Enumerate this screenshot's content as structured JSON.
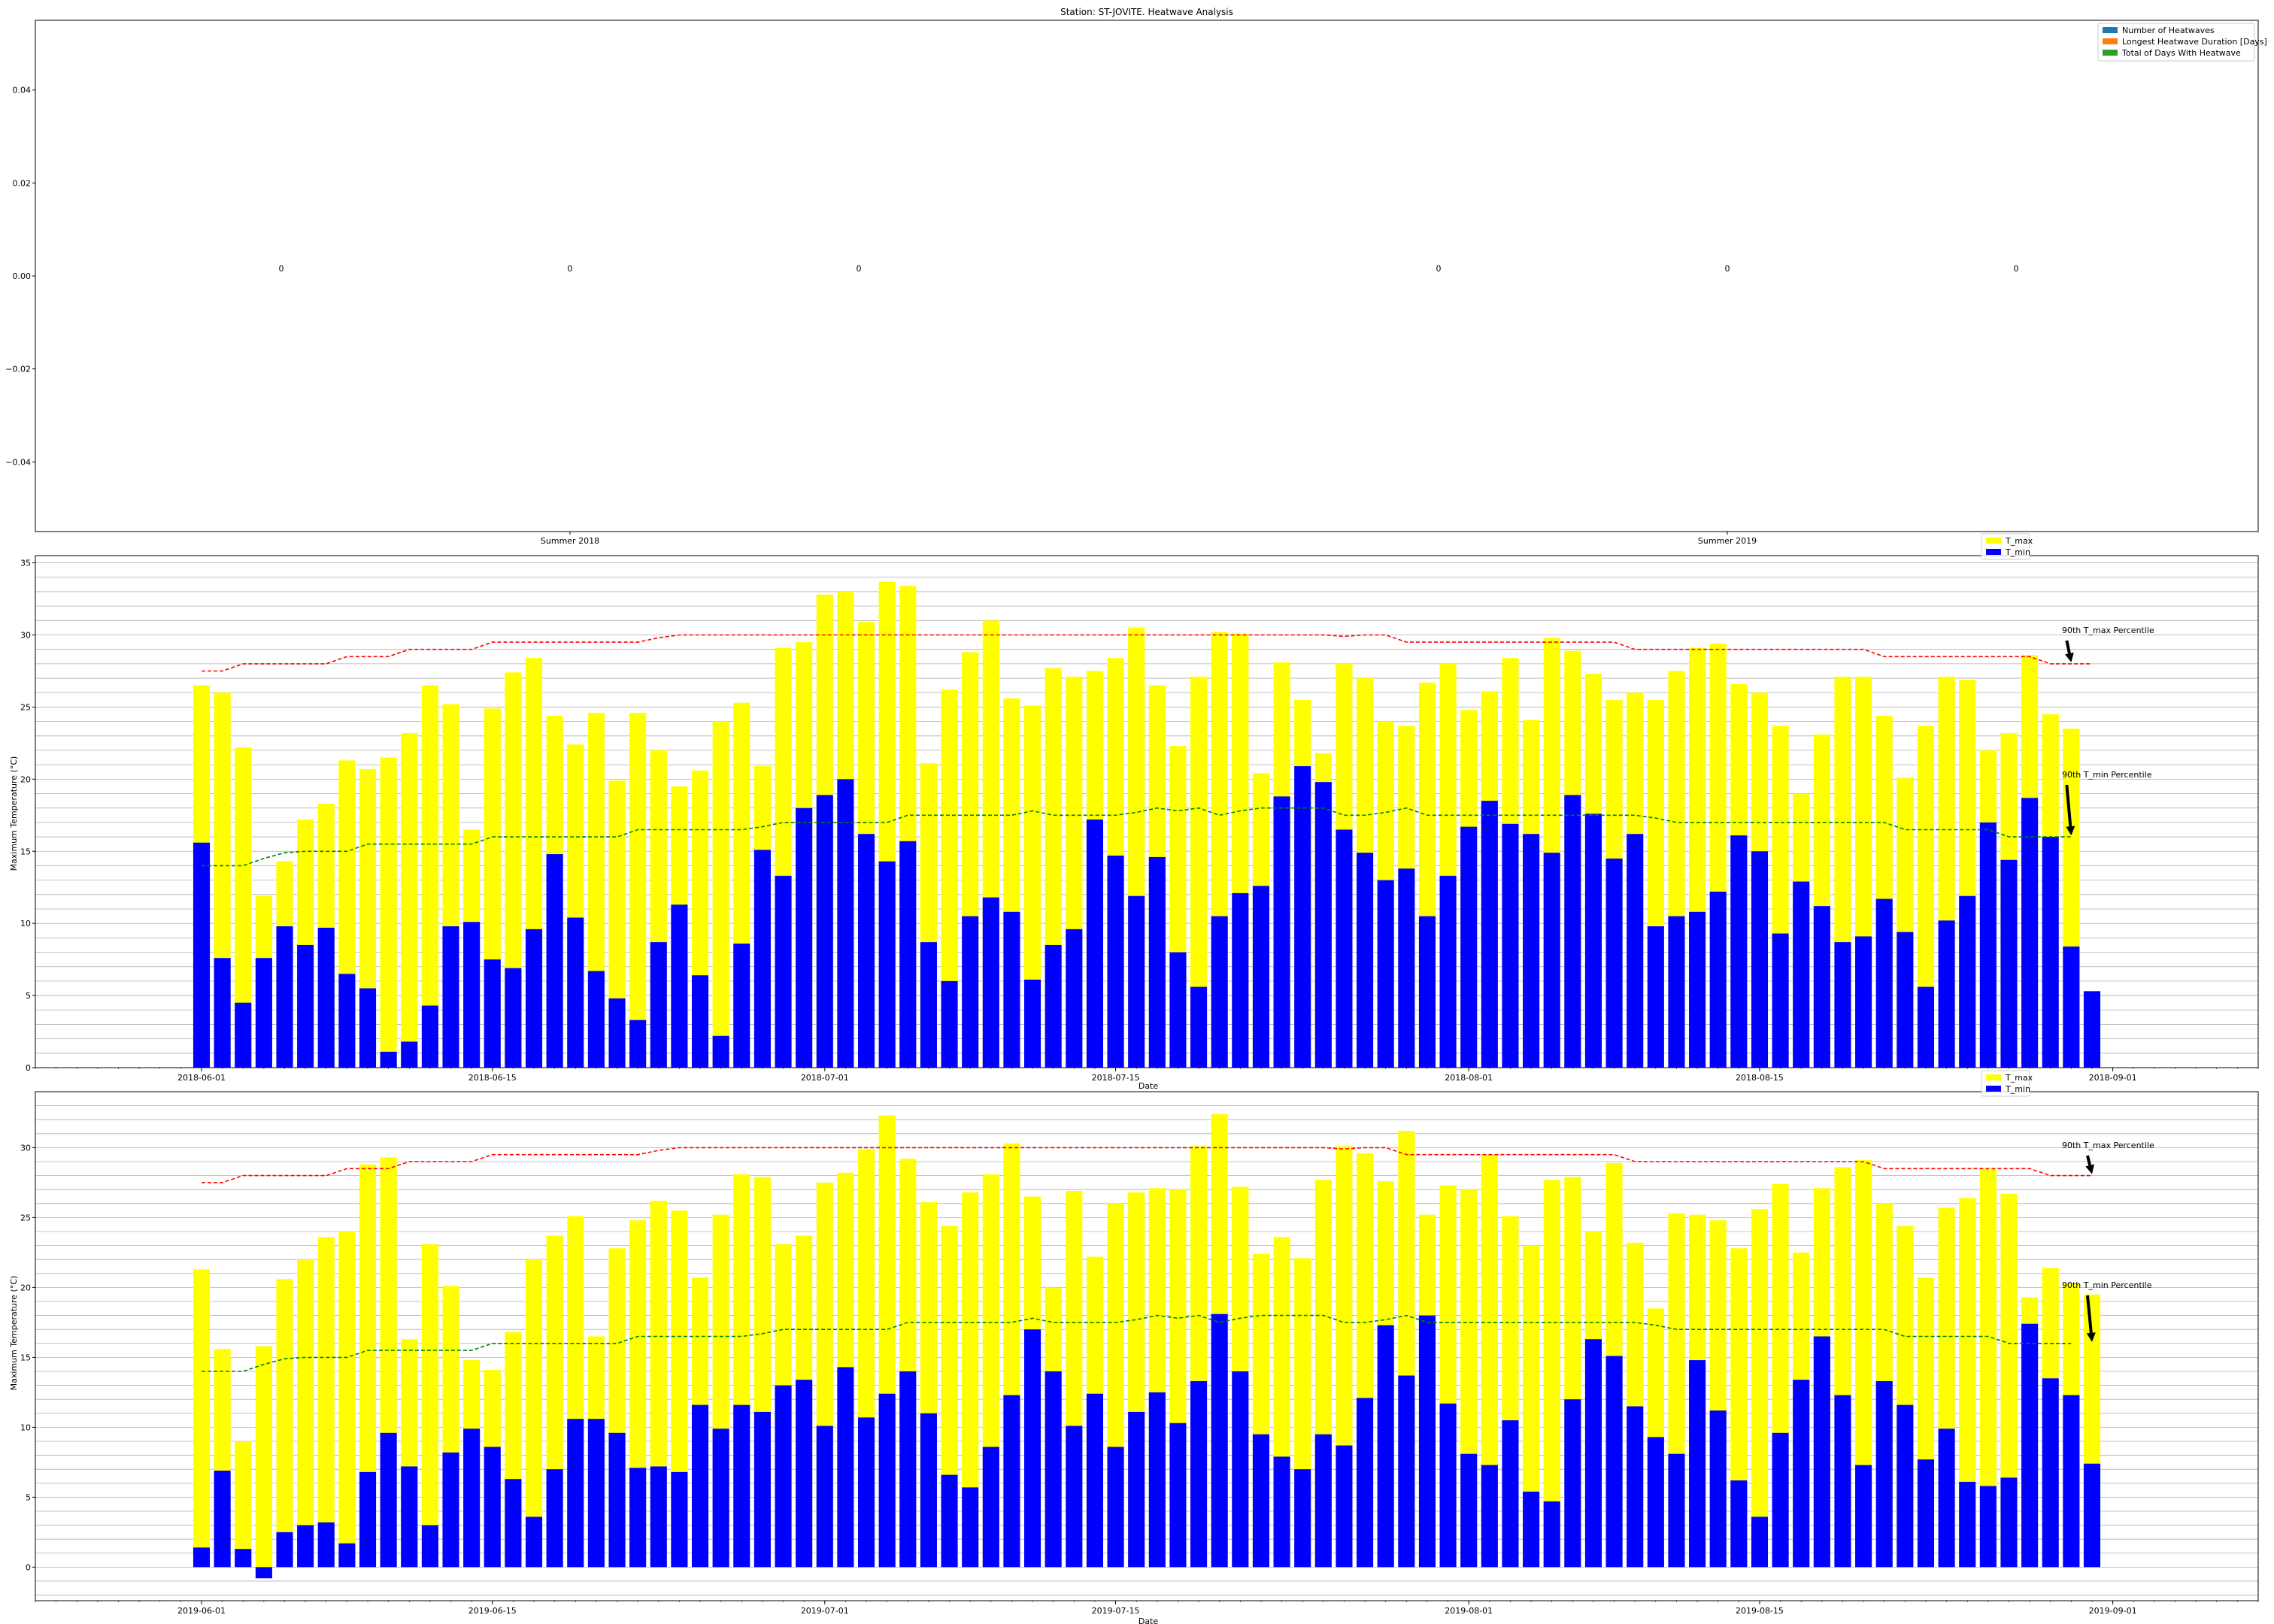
{
  "chart_data": [
    {
      "type": "bar",
      "title": "Station: ST-JOVITE. Heatwave Analysis",
      "xlabel": "",
      "ylabel": "",
      "categories": [
        "Summer 2018",
        "Summer 2019"
      ],
      "series": [
        {
          "name": "Number of Heatwaves",
          "values": [
            0,
            0
          ],
          "color": "#1f77b4"
        },
        {
          "name": "Longest Heatwave Duration [Days]",
          "values": [
            0,
            0
          ],
          "color": "#ff7f0e"
        },
        {
          "name": "Total of Days With Heatwave",
          "values": [
            0,
            0
          ],
          "color": "#2ca02c"
        }
      ],
      "bar_value_labels": [
        "0",
        "0",
        "0",
        "0",
        "0",
        "0"
      ],
      "ylim": [
        -0.055,
        0.055
      ],
      "yticks": [
        0.04,
        0.02,
        0.0,
        -0.02,
        -0.04
      ],
      "ytick_labels": [
        "0.04",
        "0.02",
        "0.00",
        "−0.02",
        "−0.04"
      ],
      "legend": "top-right"
    },
    {
      "type": "bar",
      "title": "",
      "xlabel": "Date",
      "ylabel": "Maximum Temperature (°C)",
      "x_start": "2018-06-01",
      "x_end": "2018-08-31",
      "xlim": [
        "2018-05-24",
        "2018-09-08"
      ],
      "xticks": [
        "2018-06-01",
        "2018-06-15",
        "2018-07-01",
        "2018-07-15",
        "2018-08-01",
        "2018-08-15",
        "2018-09-01"
      ],
      "ylim": [
        0,
        35.5
      ],
      "yticks": [
        0,
        5,
        10,
        15,
        20,
        25,
        30,
        35
      ],
      "ytick_labels": [
        "0",
        "5",
        "10",
        "15",
        "20",
        "25",
        "30",
        "35"
      ],
      "grid": "horizontal",
      "legend": "top-right",
      "series": [
        {
          "name": "T_max",
          "color": "#ffff00",
          "values": [
            26.5,
            26,
            22.2,
            11.9,
            14.3,
            17.2,
            18.3,
            21.3,
            20.7,
            21.5,
            23.2,
            26.5,
            25.2,
            16.5,
            24.9,
            27.4,
            28.4,
            24.4,
            22.4,
            24.6,
            19.9,
            24.6,
            22,
            19.5,
            20.6,
            24,
            25.3,
            20.9,
            29.1,
            29.5,
            32.8,
            33,
            30.9,
            33.7,
            33.4,
            21.1,
            26.2,
            28.8,
            31,
            25.6,
            25.1,
            27.7,
            27.1,
            27.5,
            28.4,
            30.5,
            26.5,
            22.3,
            27.1,
            30.2,
            30.1,
            20.4,
            28.1,
            25.5,
            21.8,
            28,
            27,
            24,
            23.7,
            26.7,
            28,
            24.8,
            26.1,
            28.4,
            24.1,
            29.8,
            28.9,
            27.3,
            25.5,
            26,
            25.5,
            27.5,
            29.1,
            29.4,
            26.6,
            26,
            23.7,
            19,
            23.1,
            27.1,
            27.1,
            24.4,
            20.1,
            23.7,
            27.1,
            26.9,
            22,
            23.2,
            28.6,
            24.5,
            23.5
          ]
        },
        {
          "name": "T_min",
          "color": "#0000ff",
          "values": [
            15.6,
            7.6,
            4.5,
            7.6,
            9.8,
            8.5,
            9.7,
            6.5,
            5.5,
            1.1,
            1.8,
            4.3,
            9.8,
            10.1,
            7.5,
            6.9,
            9.6,
            14.8,
            10.4,
            6.7,
            4.8,
            3.3,
            8.7,
            11.3,
            6.4,
            2.2,
            8.6,
            15.1,
            13.3,
            18,
            18.9,
            20,
            16.2,
            14.3,
            15.7,
            8.7,
            6,
            10.5,
            11.8,
            10.8,
            6.1,
            8.5,
            9.6,
            17.2,
            14.7,
            11.9,
            14.6,
            8,
            5.6,
            10.5,
            12.1,
            12.6,
            18.8,
            20.9,
            19.8,
            16.5,
            14.9,
            13,
            13.8,
            10.5,
            13.3,
            16.7,
            18.5,
            16.9,
            16.2,
            14.9,
            18.9,
            17.6,
            14.5,
            16.2,
            9.8,
            10.5,
            10.8,
            12.2,
            16.1,
            15,
            9.3,
            12.9,
            11.2,
            8.7,
            9.1,
            11.7,
            9.4,
            5.6,
            10.2,
            11.9,
            17,
            14.4,
            18.7,
            16,
            8.4,
            5.3
          ]
        }
      ],
      "thresholds": [
        {
          "name": "90th T_max Percentile",
          "color": "#ff0000",
          "values": [
            27.5,
            27.5,
            28,
            28,
            28,
            28,
            28,
            28.5,
            28.5,
            28.5,
            29,
            29,
            29,
            29,
            29.5,
            29.5,
            29.5,
            29.5,
            29.5,
            29.5,
            29.5,
            29.5,
            29.8,
            30,
            30,
            30,
            30,
            30,
            30,
            30,
            30,
            30,
            30,
            30,
            30,
            30,
            30,
            30,
            30,
            30,
            30,
            30,
            30,
            30,
            30,
            30,
            30,
            30,
            30,
            30,
            30,
            30,
            30,
            30,
            30,
            29.9,
            30,
            30,
            29.5,
            29.5,
            29.5,
            29.5,
            29.5,
            29.5,
            29.5,
            29.5,
            29.5,
            29.5,
            29.5,
            29,
            29,
            29,
            29,
            29,
            29,
            29,
            29,
            29,
            29,
            29,
            29,
            28.5,
            28.5,
            28.5,
            28.5,
            28.5,
            28.5,
            28.5,
            28.5,
            28,
            28,
            28
          ]
        },
        {
          "name": "90th T_min Percentile",
          "color": "#008000",
          "values": [
            14,
            14,
            14,
            14.5,
            14.9,
            15,
            15,
            15,
            15.5,
            15.5,
            15.5,
            15.5,
            15.5,
            15.5,
            16,
            16,
            16,
            16,
            16,
            16,
            16,
            16.5,
            16.5,
            16.5,
            16.5,
            16.5,
            16.5,
            16.7,
            17,
            17,
            17,
            17,
            17,
            17,
            17.5,
            17.5,
            17.5,
            17.5,
            17.5,
            17.5,
            17.8,
            17.5,
            17.5,
            17.5,
            17.5,
            17.7,
            18,
            17.8,
            18,
            17.5,
            17.8,
            18,
            18,
            18,
            18,
            17.5,
            17.5,
            17.7,
            18,
            17.5,
            17.5,
            17.5,
            17.5,
            17.5,
            17.5,
            17.5,
            17.5,
            17.5,
            17.5,
            17.5,
            17.3,
            17,
            17,
            17,
            17,
            17,
            17,
            17,
            17,
            17,
            17,
            17,
            16.5,
            16.5,
            16.5,
            16.5,
            16.5,
            16,
            16,
            16,
            16
          ]
        }
      ],
      "annotations": [
        {
          "text": "90th T_max Percentile",
          "target_y": 28
        },
        {
          "text": "90th T_min Percentile",
          "target_y": 16
        }
      ]
    },
    {
      "type": "bar",
      "title": "",
      "xlabel": "Date",
      "ylabel": "Maximum Temperature (°C)",
      "x_start": "2019-06-01",
      "x_end": "2019-08-31",
      "xlim": [
        "2019-05-24",
        "2019-09-08"
      ],
      "xticks": [
        "2019-06-01",
        "2019-06-15",
        "2019-07-01",
        "2019-07-15",
        "2019-08-01",
        "2019-08-15",
        "2019-09-01"
      ],
      "ylim": [
        -2.4,
        34
      ],
      "yticks": [
        0,
        5,
        10,
        15,
        20,
        25,
        30
      ],
      "ytick_labels": [
        "0",
        "5",
        "10",
        "15",
        "20",
        "25",
        "30"
      ],
      "grid": "horizontal",
      "legend": "top-right",
      "series": [
        {
          "name": "T_max",
          "color": "#ffff00",
          "values": [
            21.3,
            15.6,
            9,
            15.8,
            20.6,
            22,
            23.6,
            24,
            28.8,
            29.3,
            16.3,
            23.1,
            20.1,
            14.8,
            14.1,
            16.8,
            22,
            23.7,
            25.1,
            16.5,
            22.8,
            24.8,
            26.2,
            25.5,
            20.7,
            25.2,
            28.1,
            27.9,
            23.1,
            23.7,
            27.5,
            28.2,
            29.9,
            32.3,
            29.2,
            26.1,
            24.4,
            26.8,
            28.1,
            30.3,
            26.5,
            20,
            26.9,
            22.2,
            26,
            26.8,
            27.1,
            27,
            30.1,
            32.4,
            27.2,
            22.4,
            23.6,
            22.1,
            27.7,
            30.1,
            29.6,
            27.6,
            31.2,
            25.2,
            27.3,
            27,
            29.5,
            25.1,
            23,
            27.7,
            27.9,
            24,
            28.9,
            23.2,
            18.5,
            25.3,
            25.2,
            24.8,
            22.8,
            25.6,
            27.4,
            22.5,
            27.1,
            28.6,
            29.1,
            26,
            24.4,
            20.7,
            25.7,
            26.4,
            28.5,
            26.7,
            19.3,
            21.4,
            20.3,
            19.5
          ]
        },
        {
          "name": "T_min",
          "color": "#0000ff",
          "values": [
            1.4,
            6.9,
            1.3,
            -0.8,
            2.5,
            3,
            3.2,
            1.7,
            6.8,
            9.6,
            7.2,
            3,
            8.2,
            9.9,
            8.6,
            6.3,
            3.6,
            7,
            10.6,
            10.6,
            9.6,
            7.1,
            7.2,
            6.8,
            11.6,
            9.9,
            11.6,
            11.1,
            13,
            13.4,
            10.1,
            14.3,
            10.7,
            12.4,
            14,
            11,
            6.6,
            5.7,
            8.6,
            12.3,
            17,
            14,
            10.1,
            12.4,
            8.6,
            11.1,
            12.5,
            10.3,
            13.3,
            18.1,
            14,
            9.5,
            7.9,
            7,
            9.5,
            8.7,
            12.1,
            17.3,
            13.7,
            18,
            11.7,
            8.1,
            7.3,
            10.5,
            5.4,
            4.7,
            12,
            16.3,
            15.1,
            11.5,
            9.3,
            8.1,
            14.8,
            11.2,
            6.2,
            3.6,
            9.6,
            13.4,
            16.5,
            12.3,
            7.3,
            13.3,
            11.6,
            7.7,
            9.9,
            6.1,
            5.8,
            6.4,
            17.4,
            13.5,
            12.3,
            7.4
          ]
        }
      ],
      "thresholds": [
        {
          "name": "90th T_max Percentile",
          "color": "#ff0000",
          "values": [
            27.5,
            27.5,
            28,
            28,
            28,
            28,
            28,
            28.5,
            28.5,
            28.5,
            29,
            29,
            29,
            29,
            29.5,
            29.5,
            29.5,
            29.5,
            29.5,
            29.5,
            29.5,
            29.5,
            29.8,
            30,
            30,
            30,
            30,
            30,
            30,
            30,
            30,
            30,
            30,
            30,
            30,
            30,
            30,
            30,
            30,
            30,
            30,
            30,
            30,
            30,
            30,
            30,
            30,
            30,
            30,
            30,
            30,
            30,
            30,
            30,
            30,
            29.9,
            30,
            30,
            29.5,
            29.5,
            29.5,
            29.5,
            29.5,
            29.5,
            29.5,
            29.5,
            29.5,
            29.5,
            29.5,
            29,
            29,
            29,
            29,
            29,
            29,
            29,
            29,
            29,
            29,
            29,
            29,
            28.5,
            28.5,
            28.5,
            28.5,
            28.5,
            28.5,
            28.5,
            28.5,
            28,
            28,
            28
          ]
        },
        {
          "name": "90th T_min Percentile",
          "color": "#008000",
          "values": [
            14,
            14,
            14,
            14.5,
            14.9,
            15,
            15,
            15,
            15.5,
            15.5,
            15.5,
            15.5,
            15.5,
            15.5,
            16,
            16,
            16,
            16,
            16,
            16,
            16,
            16.5,
            16.5,
            16.5,
            16.5,
            16.5,
            16.5,
            16.7,
            17,
            17,
            17,
            17,
            17,
            17,
            17.5,
            17.5,
            17.5,
            17.5,
            17.5,
            17.5,
            17.8,
            17.5,
            17.5,
            17.5,
            17.5,
            17.7,
            18,
            17.8,
            18,
            17.5,
            17.8,
            18,
            18,
            18,
            18,
            17.5,
            17.5,
            17.7,
            18,
            17.5,
            17.5,
            17.5,
            17.5,
            17.5,
            17.5,
            17.5,
            17.5,
            17.5,
            17.5,
            17.5,
            17.3,
            17,
            17,
            17,
            17,
            17,
            17,
            17,
            17,
            17,
            17,
            17,
            16.5,
            16.5,
            16.5,
            16.5,
            16.5,
            16,
            16,
            16,
            16
          ]
        }
      ],
      "annotations": [
        {
          "text": "90th T_max Percentile",
          "target_y": 28
        },
        {
          "text": "90th T_min Percentile",
          "target_y": 16
        }
      ]
    }
  ]
}
